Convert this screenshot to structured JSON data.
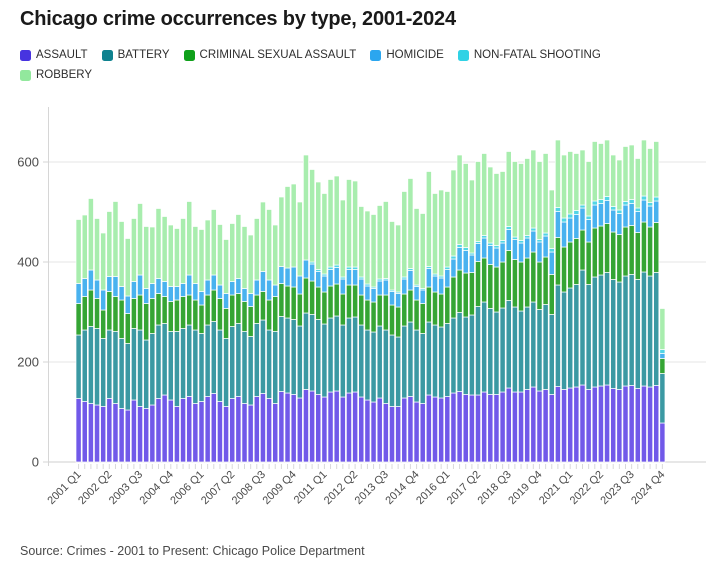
{
  "title": "Chicago crime occurrences by type, 2001-2024",
  "source": "Source: Crimes - 2001 to Present: Chicago Police Department",
  "colors": {
    "assault_swatch": "#4733E0",
    "assault_bar": "#7159E9",
    "battery_swatch": "#0F828F",
    "battery_bar": "#3B99A3",
    "csa_swatch": "#0FA01A",
    "csa_bar": "#35A534",
    "homicide_swatch": "#2BA6EF",
    "homicide_bar": "#49B2EF",
    "nfs_swatch": "#30D2E5",
    "nfs_bar": "#52D5E5",
    "robbery_swatch": "#92E89D",
    "robbery_bar": "#A8EDAE",
    "gridline": "#e6e6e6",
    "baseline": "#cfcfcf",
    "axis_line": "#d6d6d6"
  },
  "legend": [
    {
      "label": "ASSAULT",
      "color": "#4733E0"
    },
    {
      "label": "BATTERY",
      "color": "#0F828F"
    },
    {
      "label": "CRIMINAL SEXUAL ASSAULT",
      "color": "#0FA01A"
    },
    {
      "label": "HOMICIDE",
      "color": "#2BA6EF"
    },
    {
      "label": "NON-FATAL SHOOTING",
      "color": "#30D2E5"
    },
    {
      "label": "ROBBERY",
      "color": "#92E89D"
    }
  ],
  "chart_data": {
    "type": "bar",
    "stacked": true,
    "title": "Chicago crime occurrences by type, 2001-2024",
    "xlabel": "",
    "ylabel": "",
    "y_ticks": [
      0,
      200,
      400,
      600
    ],
    "ylim": [
      0,
      700
    ],
    "grid": "horizontal",
    "legend_position": "top",
    "x_tick_every": 5,
    "categories": [
      "2001 Q1",
      "2001 Q2",
      "2001 Q3",
      "2001 Q4",
      "2002 Q1",
      "2002 Q2",
      "2002 Q3",
      "2002 Q4",
      "2003 Q1",
      "2003 Q2",
      "2003 Q3",
      "2003 Q4",
      "2004 Q1",
      "2004 Q2",
      "2004 Q3",
      "2004 Q4",
      "2005 Q1",
      "2005 Q2",
      "2005 Q3",
      "2005 Q4",
      "2006 Q1",
      "2006 Q2",
      "2006 Q3",
      "2006 Q4",
      "2007 Q1",
      "2007 Q2",
      "2007 Q3",
      "2007 Q4",
      "2008 Q1",
      "2008 Q2",
      "2008 Q3",
      "2008 Q4",
      "2009 Q1",
      "2009 Q2",
      "2009 Q3",
      "2009 Q4",
      "2010 Q1",
      "2010 Q2",
      "2010 Q3",
      "2010 Q4",
      "2011 Q1",
      "2011 Q2",
      "2011 Q3",
      "2011 Q4",
      "2012 Q1",
      "2012 Q2",
      "2012 Q3",
      "2012 Q4",
      "2013 Q1",
      "2013 Q2",
      "2013 Q3",
      "2013 Q4",
      "2014 Q1",
      "2014 Q2",
      "2014 Q3",
      "2014 Q4",
      "2015 Q1",
      "2015 Q2",
      "2015 Q3",
      "2015 Q4",
      "2016 Q1",
      "2016 Q2",
      "2016 Q3",
      "2016 Q4",
      "2017 Q1",
      "2017 Q2",
      "2017 Q3",
      "2017 Q4",
      "2018 Q1",
      "2018 Q2",
      "2018 Q3",
      "2018 Q4",
      "2019 Q1",
      "2019 Q2",
      "2019 Q3",
      "2019 Q4",
      "2020 Q1",
      "2020 Q2",
      "2020 Q3",
      "2020 Q4",
      "2021 Q1",
      "2021 Q2",
      "2021 Q3",
      "2021 Q4",
      "2022 Q1",
      "2022 Q2",
      "2022 Q3",
      "2022 Q4",
      "2023 Q1",
      "2023 Q2",
      "2023 Q3",
      "2023 Q4",
      "2024 Q1",
      "2024 Q2",
      "2024 Q3",
      "2024 Q4"
    ],
    "series": [
      {
        "name": "ASSAULT",
        "color": "#7159E9",
        "values": [
          127,
          121,
          117,
          114,
          111,
          127,
          117,
          107,
          104,
          124,
          111,
          107,
          114,
          127,
          134,
          124,
          111,
          127,
          131,
          117,
          121,
          131,
          137,
          121,
          111,
          127,
          131,
          117,
          114,
          131,
          137,
          127,
          117,
          141,
          138,
          135,
          128,
          145,
          142,
          135,
          130,
          140,
          142,
          130,
          138,
          140,
          130,
          124,
          120,
          128,
          117,
          111,
          111,
          128,
          131,
          120,
          117,
          134,
          130,
          128,
          131,
          138,
          141,
          135,
          134,
          134,
          140,
          135,
          135,
          140,
          148,
          140,
          140,
          145,
          150,
          142,
          145,
          135,
          151,
          145,
          148,
          150,
          154,
          145,
          150,
          152,
          154,
          147,
          145,
          152,
          153,
          147,
          152,
          150,
          153,
          78
        ]
      },
      {
        "name": "BATTERY",
        "color": "#3B99A3",
        "values": [
          127,
          143,
          154,
          153,
          136,
          137,
          144,
          140,
          133,
          143,
          153,
          137,
          143,
          147,
          143,
          137,
          150,
          140,
          143,
          147,
          136,
          143,
          144,
          143,
          136,
          144,
          146,
          144,
          137,
          146,
          147,
          137,
          144,
          150,
          150,
          150,
          144,
          153,
          153,
          150,
          146,
          148,
          150,
          144,
          150,
          150,
          144,
          140,
          140,
          144,
          147,
          143,
          139,
          144,
          149,
          144,
          140,
          146,
          144,
          142,
          146,
          150,
          158,
          155,
          160,
          177,
          180,
          172,
          165,
          168,
          175,
          170,
          162,
          165,
          170,
          163,
          170,
          160,
          203,
          195,
          200,
          205,
          230,
          210,
          220,
          222,
          225,
          218,
          215,
          220,
          222,
          218,
          228,
          222,
          226,
          99
        ]
      },
      {
        "name": "CRIMINAL SEXUAL ASSAULT",
        "color": "#35A534",
        "values": [
          63,
          67,
          73,
          60,
          57,
          77,
          70,
          77,
          60,
          60,
          70,
          73,
          70,
          63,
          54,
          60,
          63,
          64,
          60,
          60,
          57,
          60,
          63,
          63,
          60,
          63,
          60,
          60,
          60,
          57,
          57,
          60,
          70,
          66,
          64,
          65,
          64,
          70,
          67,
          65,
          64,
          64,
          64,
          62,
          66,
          64,
          60,
          60,
          60,
          62,
          70,
          60,
          60,
          64,
          64,
          60,
          60,
          70,
          66,
          66,
          73,
          82,
          85,
          88,
          85,
          90,
          88,
          88,
          90,
          92,
          100,
          95,
          98,
          98,
          100,
          95,
          95,
          80,
          95,
          90,
          92,
          92,
          80,
          85,
          98,
          98,
          98,
          95,
          95,
          98,
          98,
          94,
          100,
          98,
          100,
          30
        ]
      },
      {
        "name": "HOMICIDE",
        "color": "#49B2EF",
        "values": [
          40,
          36,
          40,
          37,
          40,
          30,
          40,
          27,
          35,
          34,
          40,
          30,
          30,
          30,
          30,
          30,
          27,
          26,
          40,
          33,
          27,
          30,
          30,
          27,
          30,
          27,
          30,
          26,
          26,
          30,
          40,
          40,
          23,
          34,
          36,
          40,
          36,
          36,
          34,
          31,
          32,
          33,
          33,
          30,
          31,
          31,
          32,
          28,
          27,
          28,
          30,
          27,
          27,
          30,
          39,
          27,
          27,
          37,
          32,
          32,
          35,
          36,
          45,
          45,
          35,
          36,
          40,
          38,
          38,
          38,
          42,
          40,
          38,
          40,
          42,
          40,
          42,
          45,
          52,
          50,
          48,
          48,
          44,
          45,
          46,
          45,
          46,
          44,
          42,
          44,
          44,
          42,
          44,
          42,
          43,
          10
        ]
      },
      {
        "name": "NON-FATAL SHOOTING",
        "color": "#52D5E5",
        "values": [
          0,
          0,
          0,
          0,
          0,
          0,
          0,
          0,
          0,
          0,
          0,
          0,
          0,
          0,
          0,
          0,
          0,
          0,
          0,
          0,
          0,
          0,
          0,
          0,
          0,
          0,
          0,
          0,
          0,
          0,
          0,
          0,
          0,
          0,
          0,
          0,
          0,
          0,
          4,
          4,
          4,
          5,
          5,
          4,
          5,
          5,
          4,
          4,
          3,
          4,
          3,
          3,
          3,
          4,
          4,
          3,
          3,
          4,
          4,
          4,
          5,
          6,
          6,
          6,
          4,
          4,
          5,
          5,
          5,
          5,
          6,
          5,
          5,
          5,
          6,
          5,
          6,
          7,
          8,
          8,
          8,
          8,
          6,
          7,
          8,
          8,
          8,
          7,
          7,
          7,
          8,
          7,
          8,
          7,
          8,
          8
        ]
      },
      {
        "name": "ROBBERY",
        "color": "#A8EDAE",
        "values": [
          128,
          127,
          143,
          123,
          114,
          130,
          150,
          130,
          115,
          126,
          143,
          124,
          113,
          140,
          130,
          123,
          116,
          130,
          147,
          114,
          124,
          120,
          131,
          121,
          108,
          116,
          128,
          124,
          117,
          123,
          139,
          141,
          120,
          139,
          163,
          166,
          148,
          210,
          185,
          175,
          161,
          175,
          178,
          154,
          175,
          172,
          141,
          146,
          145,
          147,
          154,
          137,
          134,
          171,
          180,
          153,
          150,
          190,
          161,
          172,
          151,
          172,
          179,
          168,
          146,
          160,
          164,
          152,
          144,
          138,
          150,
          151,
          154,
          154,
          156,
          156,
          159,
          117,
          135,
          126,
          125,
          114,
          110,
          109,
          119,
          112,
          113,
          103,
          100,
          110,
          109,
          99,
          112,
          108,
          111,
          82
        ]
      }
    ]
  }
}
